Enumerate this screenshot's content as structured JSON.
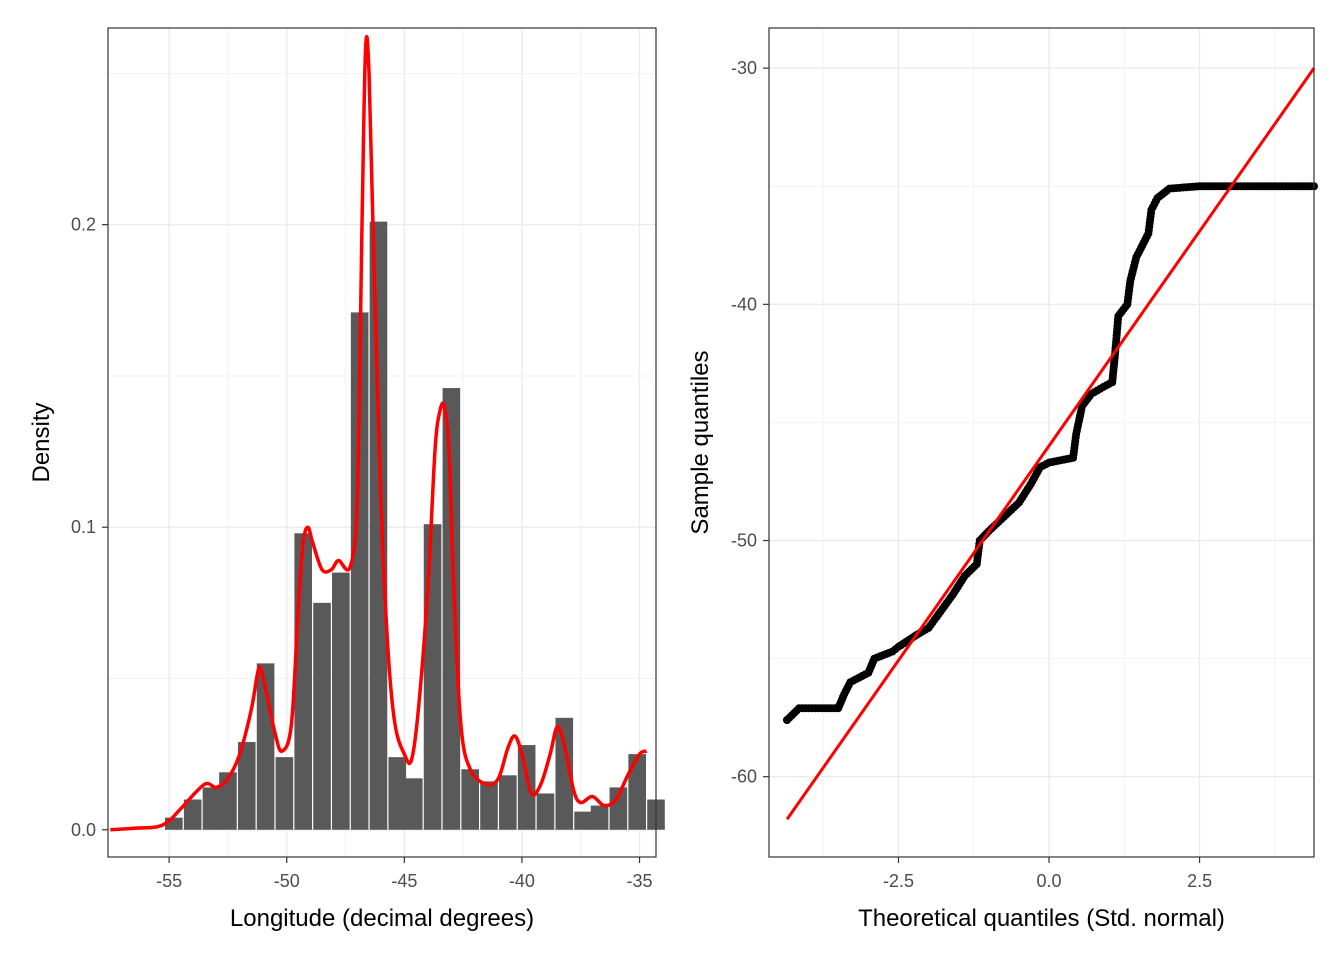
{
  "chart_data": [
    {
      "type": "bar",
      "title": "",
      "xlabel": "Longitude (decimal degrees)",
      "ylabel": "Density",
      "xlim": [
        -57.6,
        -34.3
      ],
      "ylim": [
        -0.009,
        0.265
      ],
      "x_ticks": [
        -55,
        -50,
        -45,
        -40,
        -35
      ],
      "x_tick_labels": [
        "-55",
        "-50",
        "-45",
        "-40",
        "-35"
      ],
      "y_ticks": [
        0.0,
        0.1,
        0.2
      ],
      "y_tick_labels": [
        "0.0",
        "0.1",
        "0.2"
      ],
      "grid": true,
      "bin_width": 0.8,
      "bins": [
        {
          "x": -54.8,
          "density": 0.004
        },
        {
          "x": -54.0,
          "density": 0.01
        },
        {
          "x": -53.2,
          "density": 0.014
        },
        {
          "x": -52.5,
          "density": 0.019
        },
        {
          "x": -51.7,
          "density": 0.029
        },
        {
          "x": -50.9,
          "density": 0.055
        },
        {
          "x": -50.1,
          "density": 0.024
        },
        {
          "x": -49.3,
          "density": 0.098
        },
        {
          "x": -48.5,
          "density": 0.075
        },
        {
          "x": -47.7,
          "density": 0.085
        },
        {
          "x": -46.9,
          "density": 0.171
        },
        {
          "x": -46.1,
          "density": 0.201
        },
        {
          "x": -45.3,
          "density": 0.024
        },
        {
          "x": -44.6,
          "density": 0.017
        },
        {
          "x": -43.8,
          "density": 0.101
        },
        {
          "x": -43.0,
          "density": 0.146
        },
        {
          "x": -42.2,
          "density": 0.02
        },
        {
          "x": -41.4,
          "density": 0.016
        },
        {
          "x": -40.6,
          "density": 0.018
        },
        {
          "x": -39.8,
          "density": 0.028
        },
        {
          "x": -39.0,
          "density": 0.012
        },
        {
          "x": -38.2,
          "density": 0.037
        },
        {
          "x": -37.4,
          "density": 0.006
        },
        {
          "x": -36.7,
          "density": 0.008
        },
        {
          "x": -35.9,
          "density": 0.014
        },
        {
          "x": -35.1,
          "density": 0.025
        },
        {
          "x": -34.3,
          "density": 0.01
        }
      ],
      "density_curve": {
        "color": "#ff0000",
        "points": [
          [
            -57.5,
            0.0
          ],
          [
            -56.5,
            0.0005
          ],
          [
            -55.5,
            0.001
          ],
          [
            -55.0,
            0.003
          ],
          [
            -54.5,
            0.007
          ],
          [
            -53.5,
            0.015
          ],
          [
            -53.0,
            0.014
          ],
          [
            -52.5,
            0.017
          ],
          [
            -52.0,
            0.025
          ],
          [
            -51.5,
            0.04
          ],
          [
            -51.2,
            0.053
          ],
          [
            -51.0,
            0.05
          ],
          [
            -50.5,
            0.032
          ],
          [
            -50.2,
            0.026
          ],
          [
            -49.8,
            0.035
          ],
          [
            -49.5,
            0.075
          ],
          [
            -49.3,
            0.095
          ],
          [
            -49.1,
            0.1
          ],
          [
            -48.9,
            0.095
          ],
          [
            -48.5,
            0.086
          ],
          [
            -48.1,
            0.086
          ],
          [
            -47.8,
            0.089
          ],
          [
            -47.3,
            0.087
          ],
          [
            -47.0,
            0.11
          ],
          [
            -46.8,
            0.2
          ],
          [
            -46.65,
            0.258
          ],
          [
            -46.5,
            0.25
          ],
          [
            -46.3,
            0.19
          ],
          [
            -46.0,
            0.11
          ],
          [
            -45.7,
            0.06
          ],
          [
            -45.4,
            0.035
          ],
          [
            -45.0,
            0.025
          ],
          [
            -44.7,
            0.023
          ],
          [
            -44.4,
            0.04
          ],
          [
            -44.0,
            0.08
          ],
          [
            -43.7,
            0.125
          ],
          [
            -43.5,
            0.138
          ],
          [
            -43.3,
            0.14
          ],
          [
            -43.1,
            0.125
          ],
          [
            -42.9,
            0.08
          ],
          [
            -42.6,
            0.035
          ],
          [
            -42.2,
            0.02
          ],
          [
            -41.5,
            0.015
          ],
          [
            -41.0,
            0.017
          ],
          [
            -40.6,
            0.027
          ],
          [
            -40.3,
            0.031
          ],
          [
            -40.0,
            0.025
          ],
          [
            -39.6,
            0.012
          ],
          [
            -39.2,
            0.015
          ],
          [
            -38.8,
            0.025
          ],
          [
            -38.5,
            0.034
          ],
          [
            -38.2,
            0.028
          ],
          [
            -37.8,
            0.013
          ],
          [
            -37.5,
            0.009
          ],
          [
            -37.0,
            0.011
          ],
          [
            -36.5,
            0.008
          ],
          [
            -36.0,
            0.01
          ],
          [
            -35.5,
            0.018
          ],
          [
            -35.0,
            0.025
          ],
          [
            -34.7,
            0.026
          ]
        ]
      }
    },
    {
      "type": "scatter",
      "title": "",
      "xlabel": "Theoretical quantiles (Std. normal)",
      "ylabel": "Sample quantiles",
      "xlim": [
        -4.65,
        4.4
      ],
      "ylim": [
        -63.4,
        -28.3
      ],
      "x_ticks": [
        -2.5,
        0.0,
        2.5
      ],
      "x_tick_labels": [
        "-2.5",
        "0.0",
        "2.5"
      ],
      "y_ticks": [
        -60,
        -50,
        -40,
        -30
      ],
      "y_tick_labels": [
        "-60",
        "-50",
        "-40",
        "-30"
      ],
      "grid": true,
      "point_color": "#000000",
      "sample_quantile_curve": [
        [
          -4.35,
          -57.6
        ],
        [
          -4.15,
          -57.1
        ],
        [
          -3.5,
          -57.1
        ],
        [
          -3.4,
          -56.5
        ],
        [
          -3.3,
          -56.0
        ],
        [
          -3.0,
          -55.6
        ],
        [
          -2.9,
          -55.0
        ],
        [
          -2.6,
          -54.7
        ],
        [
          -2.5,
          -54.5
        ],
        [
          -2.2,
          -54.0
        ],
        [
          -2.0,
          -53.7
        ],
        [
          -1.8,
          -53.0
        ],
        [
          -1.6,
          -52.3
        ],
        [
          -1.4,
          -51.5
        ],
        [
          -1.2,
          -51.0
        ],
        [
          -1.15,
          -50.0
        ],
        [
          -1.0,
          -49.6
        ],
        [
          -0.75,
          -49.0
        ],
        [
          -0.5,
          -48.4
        ],
        [
          -0.3,
          -47.6
        ],
        [
          -0.15,
          -46.9
        ],
        [
          0.0,
          -46.7
        ],
        [
          0.2,
          -46.6
        ],
        [
          0.4,
          -46.5
        ],
        [
          0.45,
          -45.5
        ],
        [
          0.55,
          -44.3
        ],
        [
          0.7,
          -43.8
        ],
        [
          0.9,
          -43.5
        ],
        [
          1.05,
          -43.3
        ],
        [
          1.1,
          -42.0
        ],
        [
          1.15,
          -40.5
        ],
        [
          1.3,
          -40.0
        ],
        [
          1.35,
          -39.0
        ],
        [
          1.45,
          -38.0
        ],
        [
          1.55,
          -37.5
        ],
        [
          1.65,
          -37.0
        ],
        [
          1.7,
          -36.0
        ],
        [
          1.8,
          -35.5
        ],
        [
          2.0,
          -35.1
        ],
        [
          2.5,
          -35.0
        ],
        [
          3.5,
          -35.0
        ],
        [
          3.85,
          -35.0
        ],
        [
          4.4,
          -35.0
        ]
      ],
      "extra_points": [
        [
          -4.35,
          -57.6
        ],
        [
          4.4,
          -35.0
        ]
      ],
      "reference_line": {
        "color": "#ff0000",
        "from": [
          -4.35,
          -61.8
        ],
        "to": [
          4.4,
          -30.0
        ]
      }
    }
  ]
}
